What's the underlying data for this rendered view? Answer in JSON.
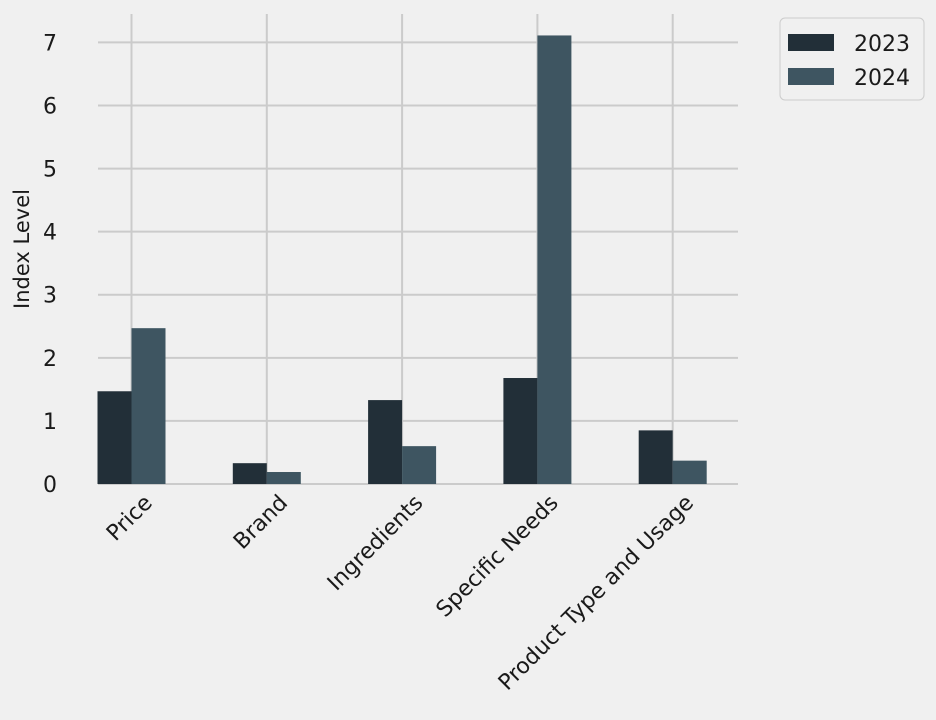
{
  "chart_data": {
    "type": "bar",
    "title": "",
    "xlabel": "",
    "ylabel": "Index Level",
    "categories": [
      "Price",
      "Brand",
      "Ingredients",
      "Specific Needs",
      "Product Type and Usage"
    ],
    "series": [
      {
        "name": "2023",
        "color": "#222f38",
        "values": [
          1.47,
          0.33,
          1.33,
          1.68,
          0.85
        ]
      },
      {
        "name": "2024",
        "color": "#3e5561",
        "values": [
          2.47,
          0.19,
          0.6,
          7.11,
          0.37
        ]
      }
    ],
    "ylim": [
      0,
      7.45
    ],
    "yticks": [
      "0",
      "1",
      "2",
      "3",
      "4",
      "5",
      "6",
      "7"
    ],
    "grid": true,
    "legend_position": "top-right, outside plot"
  }
}
